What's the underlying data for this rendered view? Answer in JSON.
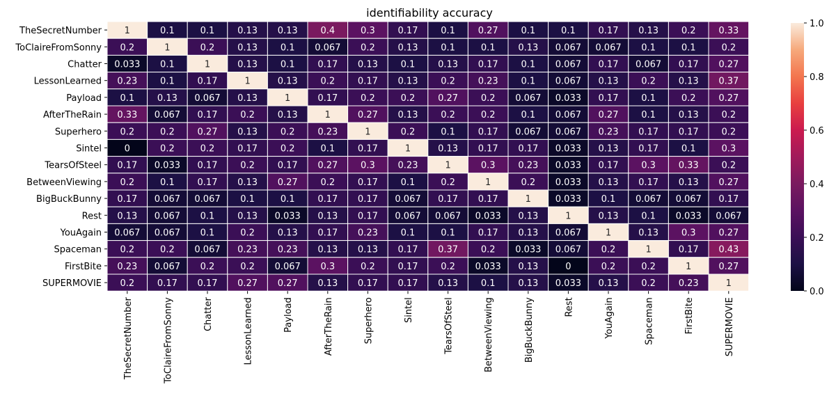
{
  "chart_data": {
    "type": "heatmap",
    "title": "identifiability accuracy",
    "rows": [
      "TheSecretNumber",
      "ToClaireFromSonny",
      "Chatter",
      "LessonLearned",
      "Payload",
      "AfterTheRain",
      "Superhero",
      "Sintel",
      "TearsOfSteel",
      "BetweenViewing",
      "BigBuckBunny",
      "Rest",
      "YouAgain",
      "Spaceman",
      "FirstBite",
      "SUPERMOVIE"
    ],
    "columns": [
      "TheSecretNumber",
      "ToClaireFromSonny",
      "Chatter",
      "LessonLearned",
      "Payload",
      "AfterTheRain",
      "Superhero",
      "Sintel",
      "TearsOfSteel",
      "BetweenViewing",
      "BigBuckBunny",
      "Rest",
      "YouAgain",
      "Spaceman",
      "FirstBite",
      "SUPERMOVIE"
    ],
    "values": [
      [
        "1",
        "0.1",
        "0.1",
        "0.13",
        "0.13",
        "0.4",
        "0.3",
        "0.17",
        "0.1",
        "0.27",
        "0.1",
        "0.1",
        "0.17",
        "0.13",
        "0.2",
        "0.33"
      ],
      [
        "0.2",
        "1",
        "0.2",
        "0.13",
        "0.1",
        "0.067",
        "0.2",
        "0.13",
        "0.1",
        "0.1",
        "0.13",
        "0.067",
        "0.067",
        "0.1",
        "0.1",
        "0.2"
      ],
      [
        "0.033",
        "0.1",
        "1",
        "0.13",
        "0.1",
        "0.17",
        "0.13",
        "0.1",
        "0.13",
        "0.17",
        "0.1",
        "0.067",
        "0.17",
        "0.067",
        "0.17",
        "0.27"
      ],
      [
        "0.23",
        "0.1",
        "0.17",
        "1",
        "0.13",
        "0.2",
        "0.17",
        "0.13",
        "0.2",
        "0.23",
        "0.1",
        "0.067",
        "0.13",
        "0.2",
        "0.13",
        "0.37"
      ],
      [
        "0.1",
        "0.13",
        "0.067",
        "0.13",
        "1",
        "0.17",
        "0.2",
        "0.2",
        "0.27",
        "0.2",
        "0.067",
        "0.033",
        "0.17",
        "0.1",
        "0.2",
        "0.27"
      ],
      [
        "0.33",
        "0.067",
        "0.17",
        "0.2",
        "0.13",
        "1",
        "0.27",
        "0.13",
        "0.2",
        "0.2",
        "0.1",
        "0.067",
        "0.27",
        "0.1",
        "0.13",
        "0.2"
      ],
      [
        "0.2",
        "0.2",
        "0.27",
        "0.13",
        "0.2",
        "0.23",
        "1",
        "0.2",
        "0.1",
        "0.17",
        "0.067",
        "0.067",
        "0.23",
        "0.17",
        "0.17",
        "0.2"
      ],
      [
        "0",
        "0.2",
        "0.2",
        "0.17",
        "0.2",
        "0.1",
        "0.17",
        "1",
        "0.13",
        "0.17",
        "0.17",
        "0.033",
        "0.13",
        "0.17",
        "0.1",
        "0.3"
      ],
      [
        "0.17",
        "0.033",
        "0.17",
        "0.2",
        "0.17",
        "0.27",
        "0.3",
        "0.23",
        "1",
        "0.3",
        "0.23",
        "0.033",
        "0.17",
        "0.3",
        "0.33",
        "0.2"
      ],
      [
        "0.2",
        "0.1",
        "0.17",
        "0.13",
        "0.27",
        "0.2",
        "0.17",
        "0.1",
        "0.2",
        "1",
        "0.2",
        "0.033",
        "0.13",
        "0.17",
        "0.13",
        "0.27"
      ],
      [
        "0.17",
        "0.067",
        "0.067",
        "0.1",
        "0.1",
        "0.17",
        "0.17",
        "0.067",
        "0.17",
        "0.17",
        "1",
        "0.033",
        "0.1",
        "0.067",
        "0.067",
        "0.17"
      ],
      [
        "0.13",
        "0.067",
        "0.1",
        "0.13",
        "0.033",
        "0.13",
        "0.17",
        "0.067",
        "0.067",
        "0.033",
        "0.13",
        "1",
        "0.13",
        "0.1",
        "0.033",
        "0.067"
      ],
      [
        "0.067",
        "0.067",
        "0.1",
        "0.2",
        "0.13",
        "0.17",
        "0.23",
        "0.1",
        "0.1",
        "0.17",
        "0.13",
        "0.067",
        "1",
        "0.13",
        "0.3",
        "0.27"
      ],
      [
        "0.2",
        "0.2",
        "0.067",
        "0.23",
        "0.23",
        "0.13",
        "0.13",
        "0.17",
        "0.37",
        "0.2",
        "0.033",
        "0.067",
        "0.2",
        "1",
        "0.17",
        "0.43"
      ],
      [
        "0.23",
        "0.067",
        "0.2",
        "0.2",
        "0.067",
        "0.3",
        "0.2",
        "0.17",
        "0.2",
        "0.033",
        "0.13",
        "0",
        "0.2",
        "0.2",
        "1",
        "0.27"
      ],
      [
        "0.2",
        "0.17",
        "0.17",
        "0.27",
        "0.27",
        "0.13",
        "0.17",
        "0.17",
        "0.13",
        "0.1",
        "0.13",
        "0.033",
        "0.13",
        "0.2",
        "0.23",
        "1"
      ]
    ],
    "colorbar": {
      "range": [
        0,
        1
      ],
      "ticks": [
        "0.0",
        "0.2",
        "0.4",
        "0.6",
        "0.8",
        "1.0"
      ],
      "colormap": "rocket"
    },
    "grid": true
  }
}
